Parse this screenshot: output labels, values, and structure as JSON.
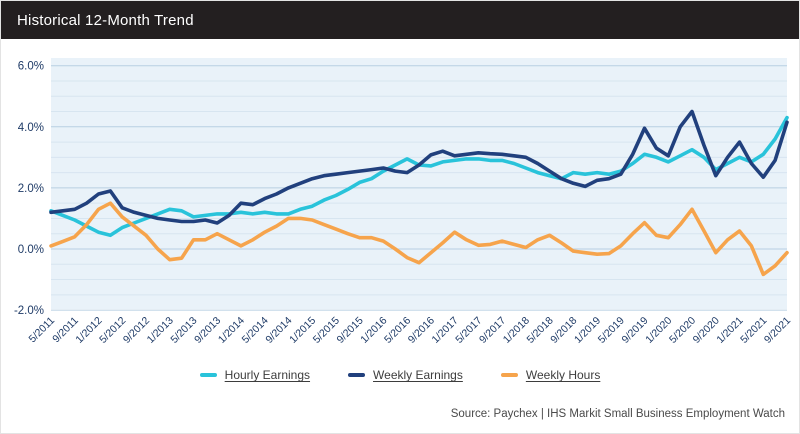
{
  "header": {
    "title": "Historical 12-Month Trend"
  },
  "footer": {
    "source": "Source: Paychex | IHS Markit Small Business Employment Watch"
  },
  "colors": {
    "titlebar_bg": "#231f20",
    "titlebar_text": "#ffffff",
    "plot_bg": "#e9f2f9",
    "grid_major": "#b8cfe2",
    "grid_minor": "#d7e5f0",
    "axis_label": "#1f3b67",
    "hourly_earnings": "#29c3da",
    "weekly_earnings": "#21407d",
    "weekly_hours": "#f6a44c",
    "legend_text": "#3d3d3d",
    "source_text": "#4a4a4a"
  },
  "chart_data": {
    "type": "line",
    "title": "Historical 12-Month Trend",
    "xlabel": "",
    "ylabel": "",
    "ylim": [
      -2.0,
      6.3
    ],
    "grid": true,
    "legend_position": "bottom",
    "y_ticks": [
      {
        "label": "6.0%",
        "value": 6
      },
      {
        "label": "4.0%",
        "value": 4
      },
      {
        "label": "2.0%",
        "value": 2
      },
      {
        "label": "0.0%",
        "value": 0
      },
      {
        "label": "-2.0%",
        "value": -2
      }
    ],
    "x_tick_labels": [
      "5/2011",
      "9/2011",
      "1/2012",
      "5/2012",
      "9/2012",
      "1/2013",
      "5/2013",
      "9/2013",
      "1/2014",
      "5/2014",
      "9/2014",
      "1/2015",
      "5/2015",
      "9/2015",
      "1/2016",
      "5/2016",
      "9/2016",
      "1/2017",
      "5/2017",
      "9/2017",
      "1/2018",
      "5/2018",
      "9/2018",
      "1/2019",
      "5/2019",
      "9/2019",
      "1/2020",
      "5/2020",
      "9/2020",
      "1/2021",
      "5/2021",
      "9/2021"
    ],
    "x": [
      "5/2011",
      "7/2011",
      "9/2011",
      "11/2011",
      "1/2012",
      "3/2012",
      "5/2012",
      "7/2012",
      "9/2012",
      "11/2012",
      "1/2013",
      "3/2013",
      "5/2013",
      "7/2013",
      "9/2013",
      "11/2013",
      "1/2014",
      "3/2014",
      "5/2014",
      "7/2014",
      "9/2014",
      "11/2014",
      "1/2015",
      "3/2015",
      "5/2015",
      "7/2015",
      "9/2015",
      "11/2015",
      "1/2016",
      "3/2016",
      "5/2016",
      "7/2016",
      "9/2016",
      "11/2016",
      "1/2017",
      "3/2017",
      "5/2017",
      "7/2017",
      "9/2017",
      "11/2017",
      "1/2018",
      "3/2018",
      "5/2018",
      "7/2018",
      "9/2018",
      "11/2018",
      "1/2019",
      "3/2019",
      "5/2019",
      "7/2019",
      "9/2019",
      "11/2019",
      "1/2020",
      "3/2020",
      "5/2020",
      "7/2020",
      "9/2020",
      "11/2020",
      "1/2021",
      "3/2021",
      "5/2021",
      "7/2021",
      "9/2021"
    ],
    "series": [
      {
        "name": "Hourly Earnings",
        "color": "#29c3da",
        "values": [
          1.25,
          1.1,
          0.95,
          0.75,
          0.55,
          0.45,
          0.7,
          0.85,
          1.0,
          1.15,
          1.3,
          1.25,
          1.05,
          1.1,
          1.15,
          1.15,
          1.2,
          1.15,
          1.2,
          1.15,
          1.15,
          1.3,
          1.4,
          1.6,
          1.75,
          1.95,
          2.18,
          2.3,
          2.55,
          2.75,
          2.95,
          2.75,
          2.72,
          2.85,
          2.9,
          2.95,
          2.95,
          2.9,
          2.9,
          2.8,
          2.65,
          2.5,
          2.4,
          2.3,
          2.5,
          2.45,
          2.5,
          2.45,
          2.55,
          2.8,
          3.1,
          3.0,
          2.85,
          3.05,
          3.25,
          3.0,
          2.6,
          2.8,
          3.0,
          2.85,
          3.1,
          3.6,
          4.3
        ]
      },
      {
        "name": "Weekly Earnings",
        "color": "#21407d",
        "values": [
          1.2,
          1.25,
          1.3,
          1.5,
          1.8,
          1.9,
          1.35,
          1.2,
          1.1,
          1.0,
          0.95,
          0.9,
          0.9,
          0.95,
          0.85,
          1.1,
          1.5,
          1.45,
          1.65,
          1.8,
          2.0,
          2.15,
          2.3,
          2.4,
          2.45,
          2.5,
          2.55,
          2.6,
          2.65,
          2.55,
          2.5,
          2.75,
          3.08,
          3.2,
          3.05,
          3.1,
          3.15,
          3.12,
          3.1,
          3.05,
          3.0,
          2.8,
          2.55,
          2.3,
          2.15,
          2.05,
          2.25,
          2.3,
          2.45,
          3.1,
          3.95,
          3.3,
          3.05,
          4.0,
          4.5,
          3.4,
          2.4,
          3.0,
          3.5,
          2.8,
          2.35,
          2.9,
          4.15
        ]
      },
      {
        "name": "Weekly Hours",
        "color": "#f6a44c",
        "values": [
          0.1,
          0.25,
          0.4,
          0.8,
          1.3,
          1.5,
          1.05,
          0.75,
          0.45,
          0.0,
          -0.35,
          -0.3,
          0.3,
          0.3,
          0.5,
          0.3,
          0.1,
          0.3,
          0.55,
          0.75,
          1.0,
          1.0,
          0.95,
          0.8,
          0.65,
          0.5,
          0.37,
          0.37,
          0.26,
          0.0,
          -0.28,
          -0.45,
          -0.12,
          0.2,
          0.55,
          0.3,
          0.12,
          0.15,
          0.26,
          0.15,
          0.05,
          0.3,
          0.45,
          0.2,
          -0.07,
          -0.12,
          -0.17,
          -0.15,
          0.1,
          0.5,
          0.86,
          0.45,
          0.37,
          0.8,
          1.3,
          0.6,
          -0.12,
          0.3,
          0.59,
          0.1,
          -0.83,
          -0.55,
          -0.12
        ]
      }
    ]
  }
}
